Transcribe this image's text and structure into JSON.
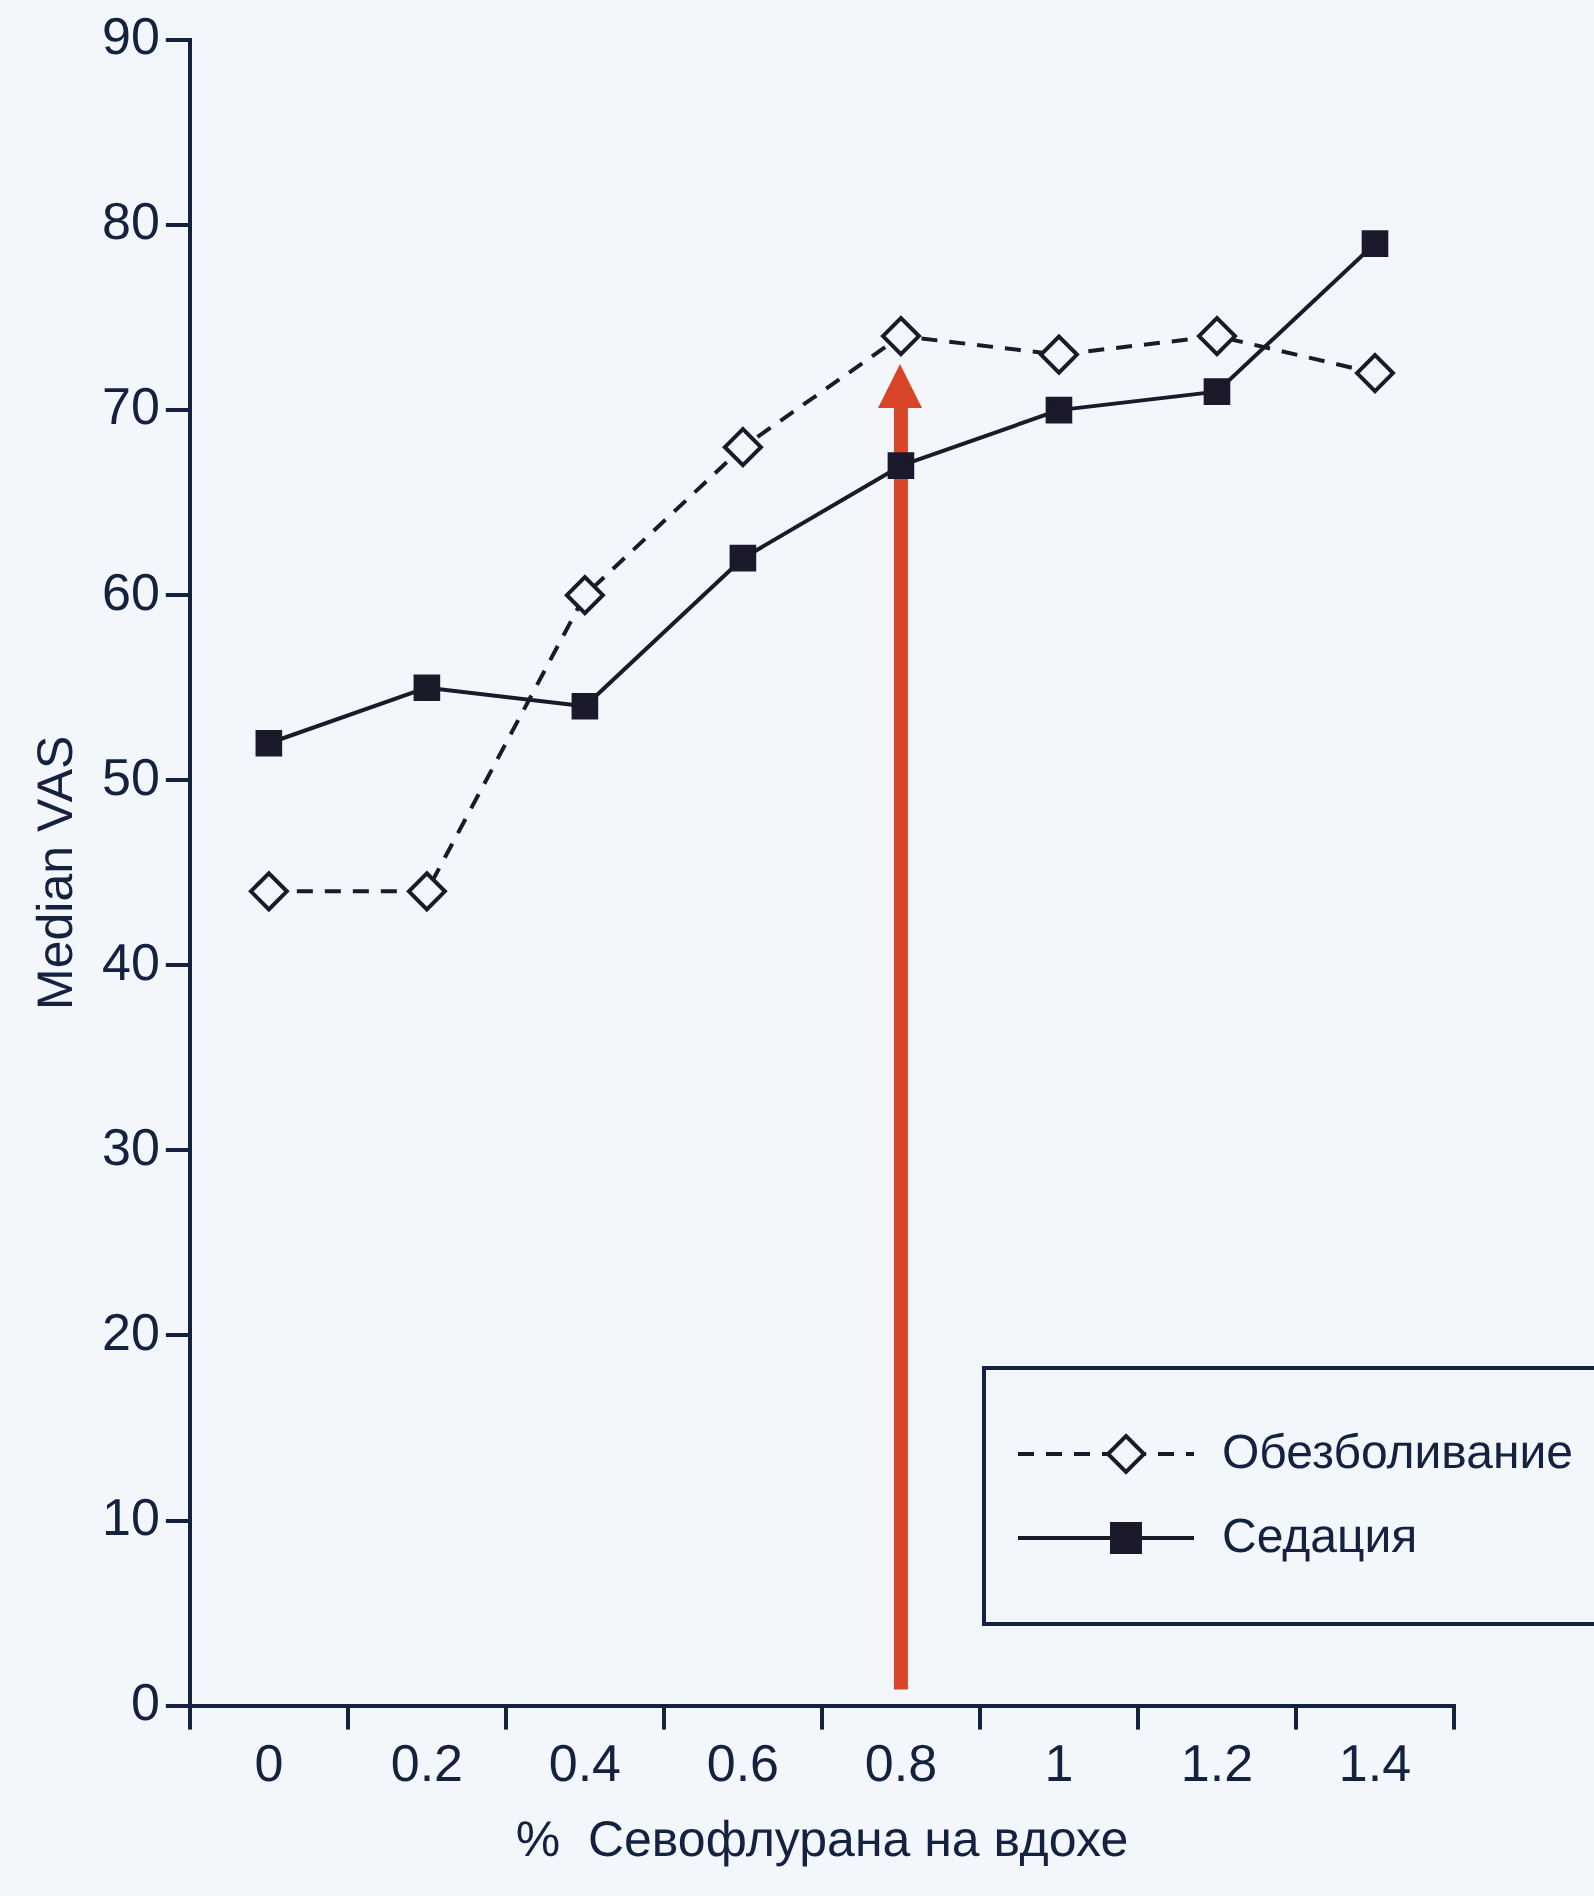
{
  "chart_data": {
    "type": "line",
    "xlabel": "%  Севофлурана на вдохе",
    "ylabel": "Median VAS",
    "categories": [
      "0",
      "0.2",
      "0.4",
      "0.6",
      "0.8",
      "1",
      "1.2",
      "1.4"
    ],
    "series": [
      {
        "name": "Обезболивание",
        "color": "#1a1a2a",
        "marker": "diamond",
        "line_style": "dashed",
        "values": [
          44,
          44,
          60,
          68,
          74,
          73,
          74,
          72
        ]
      },
      {
        "name": "Седация",
        "color": "#1a1a2a",
        "marker": "square",
        "line_style": "solid",
        "values": [
          52,
          55,
          54,
          62,
          67,
          70,
          71,
          79
        ]
      }
    ],
    "ylim": [
      0,
      90
    ],
    "yticks": [
      0,
      10,
      20,
      30,
      40,
      50,
      60,
      70,
      80,
      90
    ],
    "grid": false,
    "legend": "bottom right",
    "ref_lines": [
      {
        "axis": "x",
        "value": "0.8",
        "color": "#d9452b"
      }
    ]
  }
}
